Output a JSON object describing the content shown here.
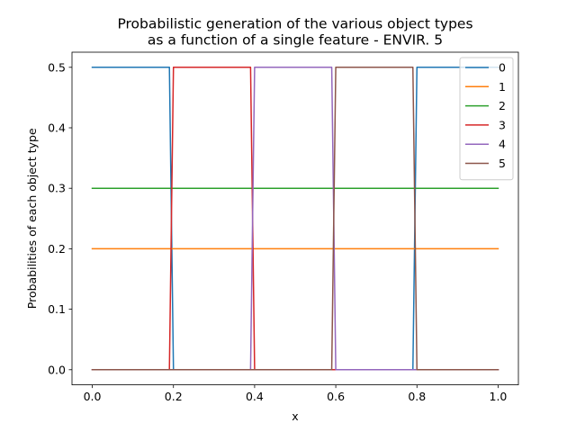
{
  "chart_data": {
    "type": "line",
    "title_lines": [
      "Probabilistic generation of the various object types",
      "as a function of a single feature - ENVIR. 5"
    ],
    "xlabel": "x",
    "ylabel": "Probabilities of each object type",
    "xlim": [
      -0.05,
      1.05
    ],
    "ylim": [
      -0.025,
      0.525
    ],
    "xticks": [
      0.0,
      0.2,
      0.4,
      0.6,
      0.8,
      1.0
    ],
    "xtick_labels": [
      "0.0",
      "0.2",
      "0.4",
      "0.6",
      "0.8",
      "1.0"
    ],
    "yticks": [
      0.0,
      0.1,
      0.2,
      0.3,
      0.4,
      0.5
    ],
    "ytick_labels": [
      "0.0",
      "0.1",
      "0.2",
      "0.3",
      "0.4",
      "0.5"
    ],
    "grid": false,
    "legend_position": "top-right",
    "series": [
      {
        "name": "0",
        "color": "#1f77b4",
        "x": [
          0.0,
          0.19,
          0.2,
          0.79,
          0.8,
          1.0
        ],
        "y": [
          0.5,
          0.5,
          0.0,
          0.0,
          0.5,
          0.5
        ]
      },
      {
        "name": "1",
        "color": "#ff7f0e",
        "x": [
          0.0,
          1.0
        ],
        "y": [
          0.2,
          0.2
        ]
      },
      {
        "name": "2",
        "color": "#2ca02c",
        "x": [
          0.0,
          1.0
        ],
        "y": [
          0.3,
          0.3
        ]
      },
      {
        "name": "3",
        "color": "#d62728",
        "x": [
          0.0,
          0.19,
          0.2,
          0.39,
          0.4,
          1.0
        ],
        "y": [
          0.0,
          0.0,
          0.5,
          0.5,
          0.0,
          0.0
        ]
      },
      {
        "name": "4",
        "color": "#9467bd",
        "x": [
          0.0,
          0.39,
          0.4,
          0.59,
          0.6,
          1.0
        ],
        "y": [
          0.0,
          0.0,
          0.5,
          0.5,
          0.0,
          0.0
        ]
      },
      {
        "name": "5",
        "color": "#8c564b",
        "x": [
          0.0,
          0.59,
          0.6,
          0.79,
          0.8,
          1.0
        ],
        "y": [
          0.0,
          0.0,
          0.5,
          0.5,
          0.0,
          0.0
        ]
      }
    ]
  }
}
